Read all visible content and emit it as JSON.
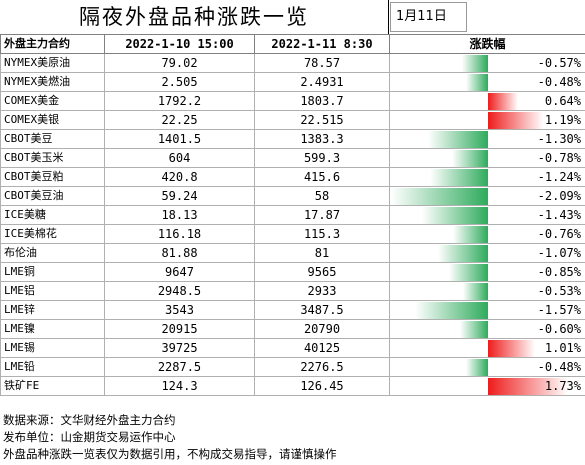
{
  "title": "隔夜外盘品种涨跌一览",
  "date": "1月11日",
  "header": {
    "name": "外盘主力合约",
    "col1": "2022-1-10  15:00",
    "col2": "2022-1-11  8:30",
    "change": "涨跌幅"
  },
  "rows": [
    {
      "name": "NYMEX美原油",
      "p1": "79.02",
      "p2": "78.57",
      "chg": "-0.57%",
      "value": -0.57
    },
    {
      "name": "NYMEX美燃油",
      "p1": "2.505",
      "p2": "2.4931",
      "chg": "-0.48%",
      "value": -0.48
    },
    {
      "name": "COMEX美金",
      "p1": "1792.2",
      "p2": "1803.7",
      "chg": "0.64%",
      "value": 0.64
    },
    {
      "name": "COMEX美银",
      "p1": "22.25",
      "p2": "22.515",
      "chg": "1.19%",
      "value": 1.19
    },
    {
      "name": "CBOT美豆",
      "p1": "1401.5",
      "p2": "1383.3",
      "chg": "-1.30%",
      "value": -1.3
    },
    {
      "name": "CBOT美玉米",
      "p1": "604",
      "p2": "599.3",
      "chg": "-0.78%",
      "value": -0.78
    },
    {
      "name": "CBOT美豆粕",
      "p1": "420.8",
      "p2": "415.6",
      "chg": "-1.24%",
      "value": -1.24
    },
    {
      "name": "CBOT美豆油",
      "p1": "59.24",
      "p2": "58",
      "chg": "-2.09%",
      "value": -2.09
    },
    {
      "name": "ICE美糖",
      "p1": "18.13",
      "p2": "17.87",
      "chg": "-1.43%",
      "value": -1.43
    },
    {
      "name": "ICE美棉花",
      "p1": "116.18",
      "p2": "115.3",
      "chg": "-0.76%",
      "value": -0.76
    },
    {
      "name": "布伦油",
      "p1": "81.88",
      "p2": "81",
      "chg": "-1.07%",
      "value": -1.07
    },
    {
      "name": "LME铜",
      "p1": "9647",
      "p2": "9565",
      "chg": "-0.85%",
      "value": -0.85
    },
    {
      "name": "LME铝",
      "p1": "2948.5",
      "p2": "2933",
      "chg": "-0.53%",
      "value": -0.53
    },
    {
      "name": "LME锌",
      "p1": "3543",
      "p2": "3487.5",
      "chg": "-1.57%",
      "value": -1.57
    },
    {
      "name": "LME镍",
      "p1": "20915",
      "p2": "20790",
      "chg": "-0.60%",
      "value": -0.6
    },
    {
      "name": "LME锡",
      "p1": "39725",
      "p2": "40125",
      "chg": "1.01%",
      "value": 1.01
    },
    {
      "name": "LME铅",
      "p1": "2287.5",
      "p2": "2276.5",
      "chg": "-0.48%",
      "value": -0.48
    },
    {
      "name": "铁矿FE",
      "p1": "124.3",
      "p2": "126.45",
      "chg": "1.73%",
      "value": 1.73
    }
  ],
  "colors": {
    "up": "#ee1c1c",
    "down": "#2eab5c"
  },
  "footer": {
    "line1": "数据来源：文华财经外盘主力合约",
    "line2": "发布单位：山金期货交易运作中心",
    "line3": "外盘品种涨跌一览表仅为数据引用，不构成交易指导，请谨慎操作"
  }
}
